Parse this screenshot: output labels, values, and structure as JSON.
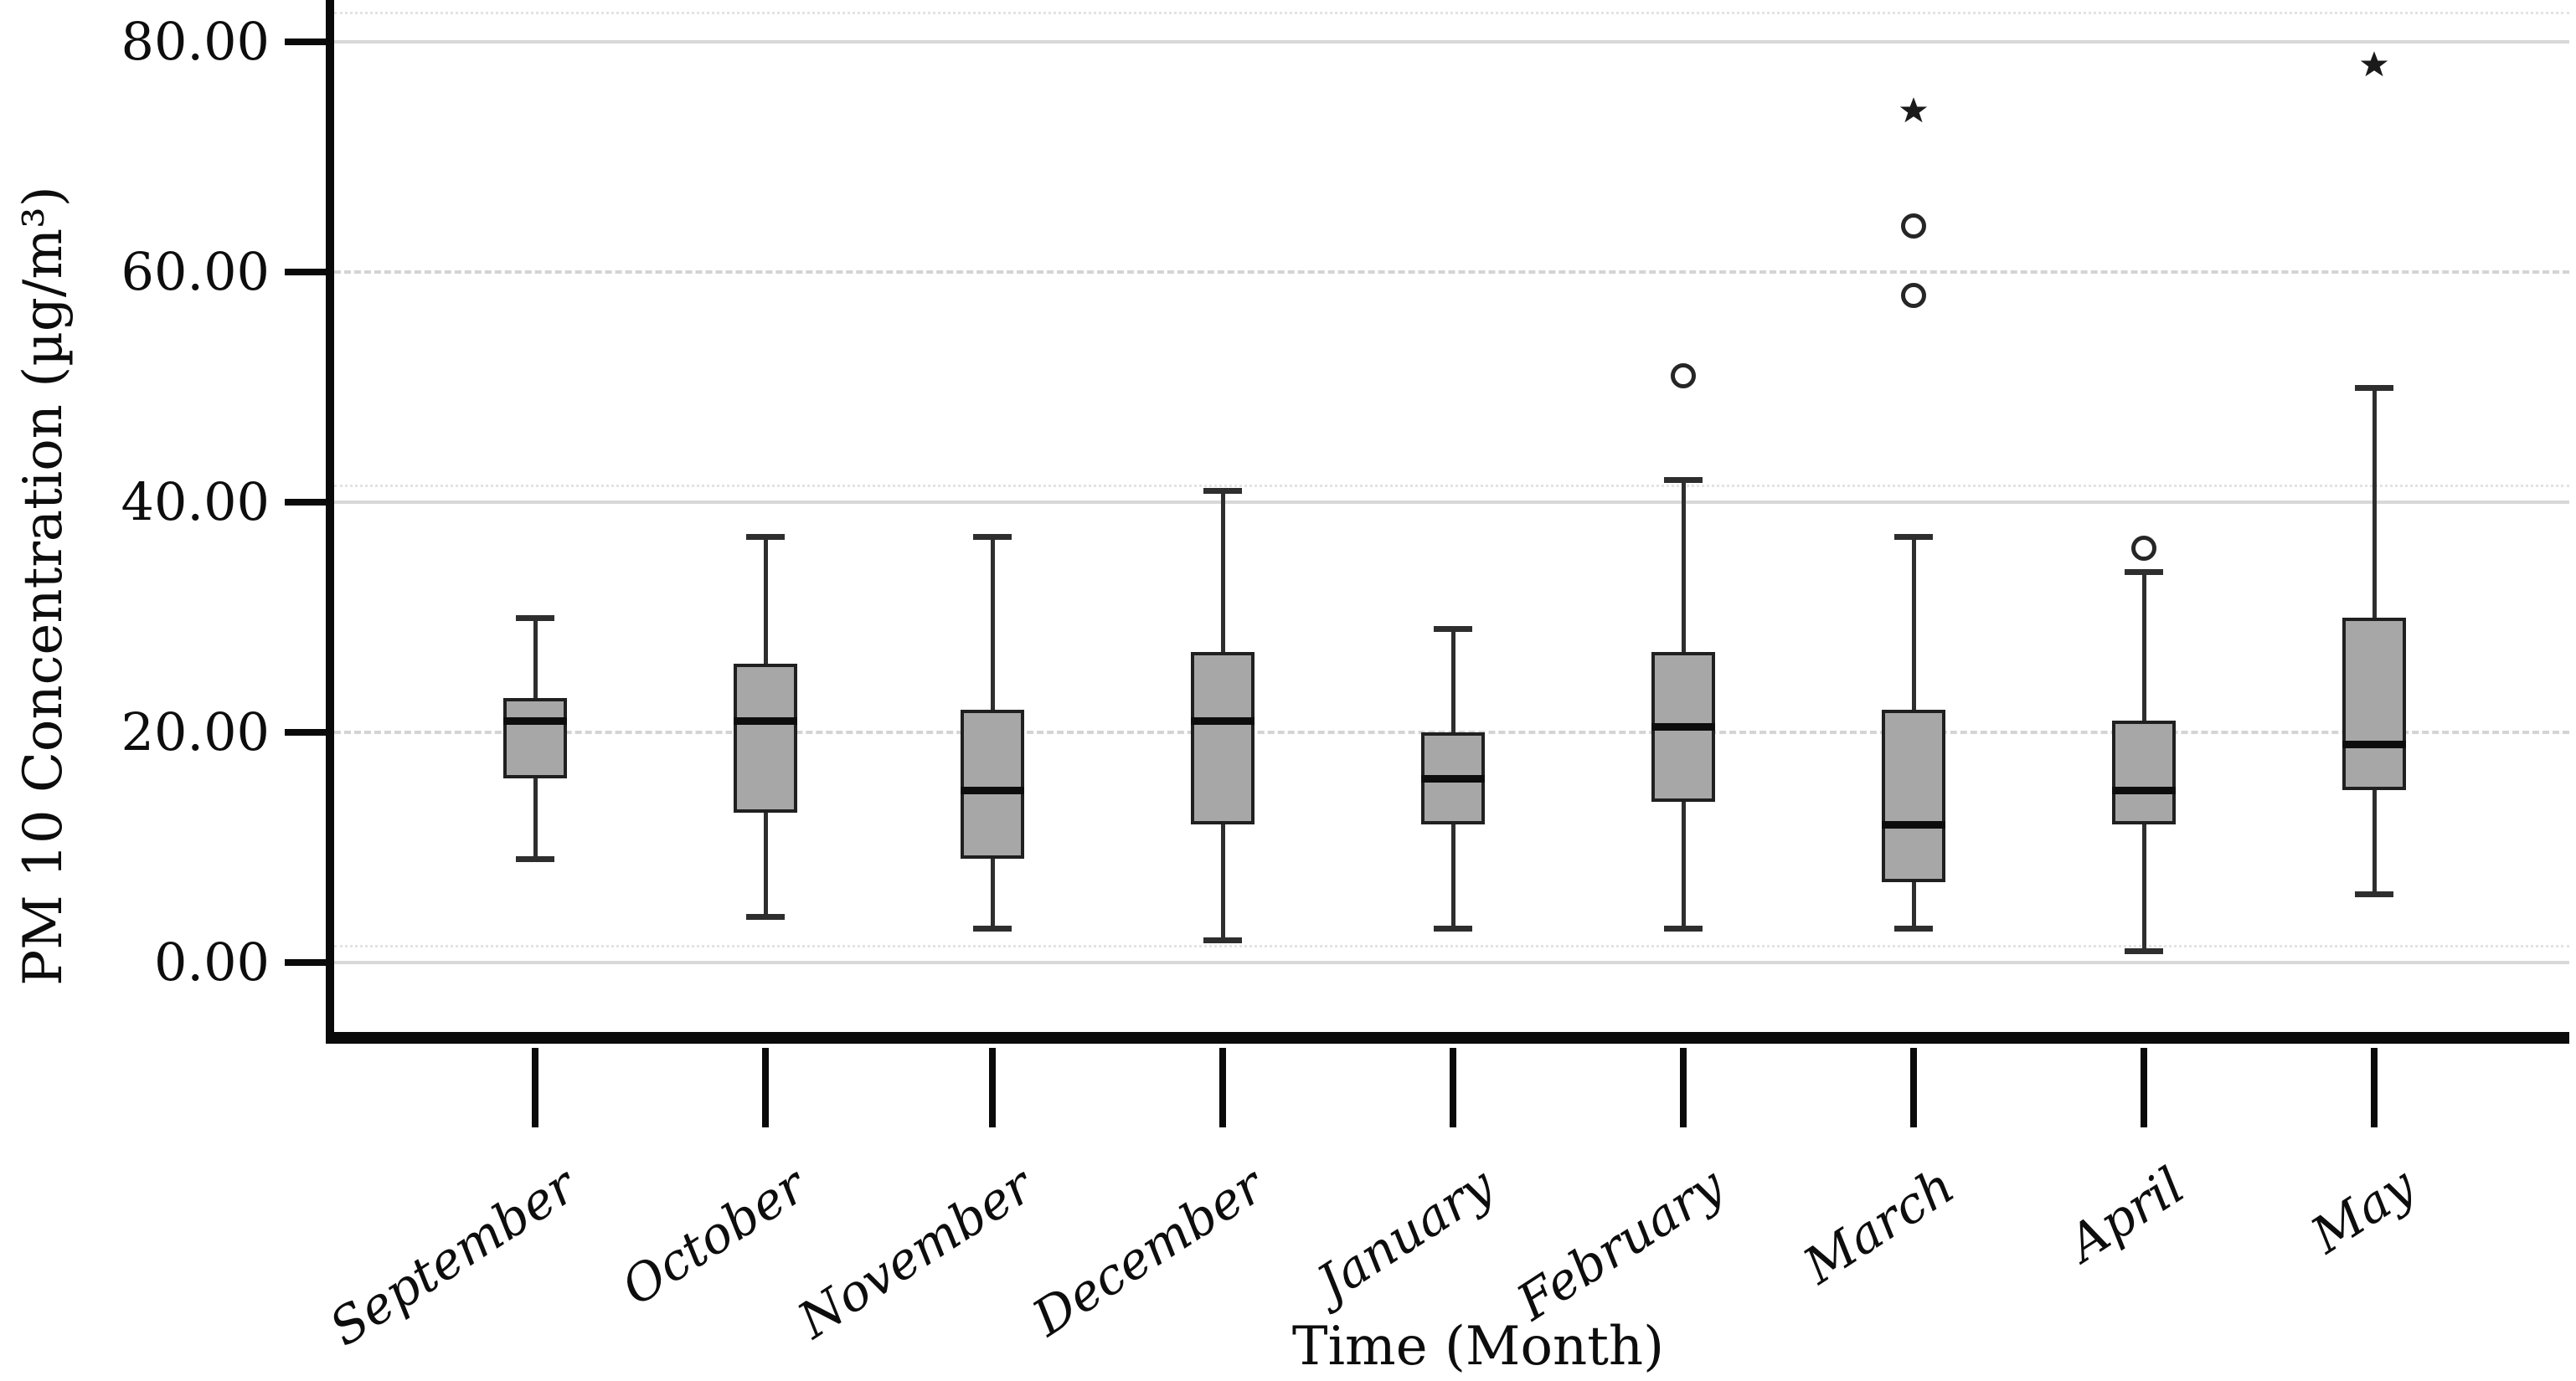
{
  "figure": {
    "background": "#ffffff",
    "box_fill": "#a7a7a7",
    "box_border": "#202020",
    "gridline_color": "#d8d8d8",
    "axis_color": "#0a0a0a"
  },
  "chart_data": {
    "type": "boxplot",
    "title": "",
    "xlabel": "Time (Month)",
    "ylabel": "PM 10 Concentration (µg/m³)",
    "grid": true,
    "legend": "none",
    "ylim": [
      -6,
      84
    ],
    "y_ticks": [
      {
        "value": 80,
        "label": "80.00"
      },
      {
        "value": 60,
        "label": "60.00"
      },
      {
        "value": 40,
        "label": "40.00"
      },
      {
        "value": 20,
        "label": "20.00"
      },
      {
        "value": 0,
        "label": "0.00"
      }
    ],
    "categories": [
      "September",
      "October",
      "November",
      "December",
      "January",
      "February",
      "March",
      "April",
      "May"
    ],
    "series": [
      {
        "category": "September",
        "min": 9,
        "q1": 16,
        "median": 21,
        "q3": 23,
        "max": 30,
        "outliers": [],
        "extremes": []
      },
      {
        "category": "October",
        "min": 4,
        "q1": 13,
        "median": 21,
        "q3": 26,
        "max": 37,
        "outliers": [],
        "extremes": []
      },
      {
        "category": "November",
        "min": 3,
        "q1": 9,
        "median": 15,
        "q3": 22,
        "max": 37,
        "outliers": [],
        "extremes": []
      },
      {
        "category": "December",
        "min": 2,
        "q1": 12,
        "median": 21,
        "q3": 27,
        "max": 41,
        "outliers": [],
        "extremes": []
      },
      {
        "category": "January",
        "min": 3,
        "q1": 12,
        "median": 16,
        "q3": 20,
        "max": 29,
        "outliers": [],
        "extremes": []
      },
      {
        "category": "February",
        "min": 3,
        "q1": 14,
        "median": 20.5,
        "q3": 27,
        "max": 42,
        "outliers": [
          51
        ],
        "extremes": []
      },
      {
        "category": "March",
        "min": 3,
        "q1": 7,
        "median": 12,
        "q3": 22,
        "max": 37,
        "outliers": [
          58,
          64
        ],
        "extremes": [
          74
        ]
      },
      {
        "category": "April",
        "min": 1,
        "q1": 12,
        "median": 15,
        "q3": 21,
        "max": 34,
        "outliers": [
          36
        ],
        "extremes": []
      },
      {
        "category": "May",
        "min": 6,
        "q1": 15,
        "median": 19,
        "q3": 30,
        "max": 50,
        "outliers": [],
        "extremes": [
          78
        ]
      }
    ]
  }
}
